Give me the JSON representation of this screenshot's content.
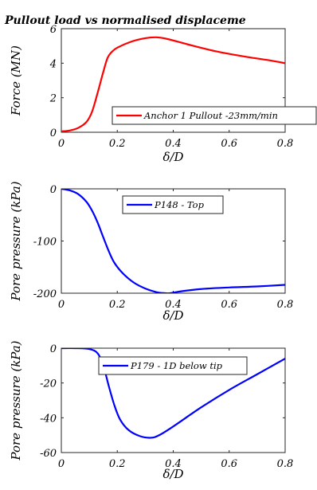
{
  "chart_data": [
    {
      "type": "line",
      "title": "Pullout load vs normalised displaceme",
      "xlabel": "δ/D",
      "ylabel": "Force (MN)",
      "xlim": [
        0,
        0.8
      ],
      "ylim": [
        0,
        6
      ],
      "xticks": [
        0,
        0.2,
        0.4,
        0.6,
        0.8
      ],
      "xtick_labels": [
        "0",
        "0.2",
        "0.4",
        "0.6",
        "0.8"
      ],
      "yticks": [
        0,
        2,
        4,
        6
      ],
      "ytick_labels": [
        "0",
        "2",
        "4",
        "6"
      ],
      "grid": false,
      "legend_position": "right",
      "series": [
        {
          "name": "Anchor 1 Pullout -23mm/min",
          "color": "#ff0000",
          "x": [
            0,
            0.03,
            0.06,
            0.09,
            0.11,
            0.13,
            0.15,
            0.165,
            0.18,
            0.2,
            0.25,
            0.3,
            0.34,
            0.38,
            0.45,
            0.55,
            0.65,
            0.75,
            0.8
          ],
          "y": [
            0.05,
            0.1,
            0.25,
            0.6,
            1.2,
            2.3,
            3.5,
            4.3,
            4.65,
            4.9,
            5.25,
            5.45,
            5.5,
            5.4,
            5.1,
            4.7,
            4.4,
            4.15,
            4.0
          ]
        }
      ]
    },
    {
      "type": "line",
      "xlabel": "δ/D",
      "ylabel": "Pore pressure (kPa)",
      "xlim": [
        0,
        0.8
      ],
      "ylim": [
        -200,
        0
      ],
      "xticks": [
        0,
        0.2,
        0.4,
        0.6,
        0.8
      ],
      "xtick_labels": [
        "0",
        "0.2",
        "0.4",
        "0.6",
        "0.8"
      ],
      "yticks": [
        -200,
        -100,
        0
      ],
      "ytick_labels": [
        "-200",
        "-100",
        "0"
      ],
      "grid": false,
      "legend_position": "top-right",
      "series": [
        {
          "name": "P148 - Top",
          "color": "#0000ff",
          "x": [
            0,
            0.03,
            0.06,
            0.09,
            0.11,
            0.13,
            0.15,
            0.17,
            0.19,
            0.22,
            0.26,
            0.3,
            0.34,
            0.37,
            0.39,
            0.42,
            0.5,
            0.6,
            0.7,
            0.8
          ],
          "y": [
            0,
            -3,
            -10,
            -25,
            -42,
            -65,
            -93,
            -120,
            -142,
            -162,
            -180,
            -191,
            -198,
            -200,
            -200,
            -197,
            -192,
            -189,
            -187,
            -184
          ]
        }
      ]
    },
    {
      "type": "line",
      "xlabel": "δ/D",
      "ylabel": "Pore pressure (kPa)",
      "xlim": [
        0,
        0.8
      ],
      "ylim": [
        -60,
        0
      ],
      "xticks": [
        0,
        0.2,
        0.4,
        0.6,
        0.8
      ],
      "xtick_labels": [
        "0",
        "0.2",
        "0.4",
        "0.6",
        "0.8"
      ],
      "yticks": [
        -60,
        -40,
        -20,
        0
      ],
      "ytick_labels": [
        "-60",
        "-40",
        "-20",
        "0"
      ],
      "grid": false,
      "legend_position": "top-right",
      "series": [
        {
          "name": "P179 - 1D below tip",
          "color": "#0000ff",
          "x": [
            0,
            0.05,
            0.1,
            0.13,
            0.15,
            0.17,
            0.19,
            0.21,
            0.24,
            0.28,
            0.32,
            0.35,
            0.4,
            0.5,
            0.6,
            0.7,
            0.8
          ],
          "y": [
            0,
            0,
            -0.5,
            -3,
            -10,
            -22,
            -33,
            -41,
            -47,
            -50.5,
            -51.5,
            -50,
            -45,
            -34,
            -24,
            -15,
            -6
          ]
        }
      ]
    }
  ]
}
